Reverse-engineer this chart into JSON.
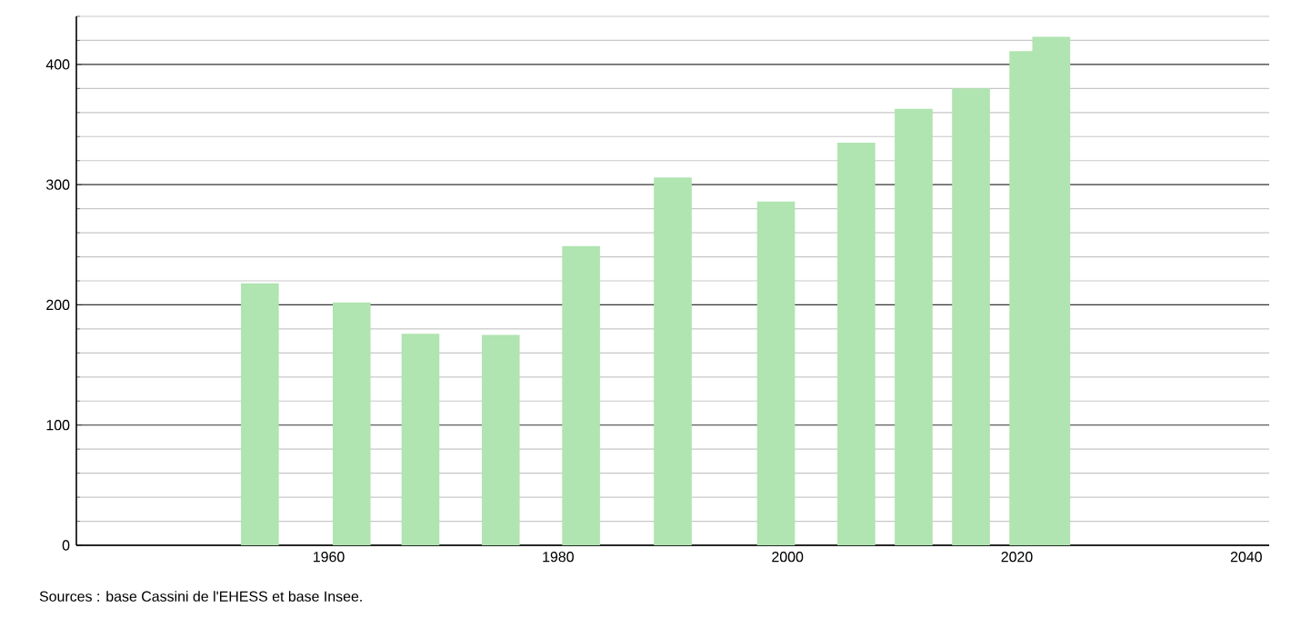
{
  "chart_data": {
    "type": "bar",
    "x": [
      1954,
      1962,
      1968,
      1975,
      1982,
      1990,
      1999,
      2006,
      2011,
      2016,
      2021,
      2023
    ],
    "values": [
      218,
      202,
      176,
      175,
      249,
      306,
      286,
      335,
      363,
      380,
      411,
      423
    ],
    "color": "#b0e4b0",
    "xlim": [
      1938,
      2042
    ],
    "xticks": [
      1960,
      1980,
      2000,
      2020,
      2040
    ],
    "ylim": [
      0,
      440
    ],
    "yticks": [
      0,
      {
        "value": 20,
        "label": null
      },
      {
        "value": 40,
        "label": null
      },
      {
        "value": 60,
        "label": null
      },
      {
        "value": 80,
        "label": null
      },
      100,
      {
        "value": 120,
        "label": null
      },
      {
        "value": 140,
        "label": null
      },
      {
        "value": 160,
        "label": null
      },
      {
        "value": 180,
        "label": null
      },
      200,
      {
        "value": 220,
        "label": null
      },
      {
        "value": 240,
        "label": null
      },
      {
        "value": 260,
        "label": null
      },
      {
        "value": 280,
        "label": null
      },
      300,
      {
        "value": 320,
        "label": null
      },
      {
        "value": 340,
        "label": null
      },
      {
        "value": 360,
        "label": null
      },
      {
        "value": 380,
        "label": null
      },
      400,
      {
        "value": 420,
        "label": null
      },
      {
        "value": 440,
        "label": null
      }
    ],
    "grid": "y",
    "annotations": [
      "Sources : base Cassini de l'EHESS et base Insee."
    ]
  }
}
